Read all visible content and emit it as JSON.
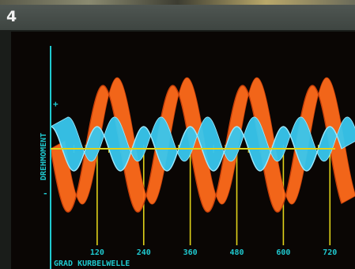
{
  "header": {
    "panel_number": "4"
  },
  "colors": {
    "axis": "#1fc8cf",
    "guide": "#e0d21a",
    "torque_orange": "#ff6a1a",
    "torque_blue": "#38c7ee"
  },
  "chart_data": {
    "type": "line",
    "ylabel_plus": "+",
    "ylabel": "DREHMOMENT",
    "ylabel_minus": "-",
    "xlabel": "GRAD KURBELWELLE",
    "xlim": [
      0,
      750
    ],
    "x_ticks": [
      "120",
      "240",
      "360",
      "480",
      "600",
      "720"
    ],
    "x_tick_values": [
      120,
      240,
      360,
      480,
      600,
      720
    ],
    "series": [
      {
        "color": "orange",
        "period_deg": 180,
        "amplitude": 1.0,
        "phase_deg": 90
      },
      {
        "color": "blue",
        "period_deg": 120,
        "amplitude": 0.35,
        "phase_deg": 30
      }
    ]
  }
}
